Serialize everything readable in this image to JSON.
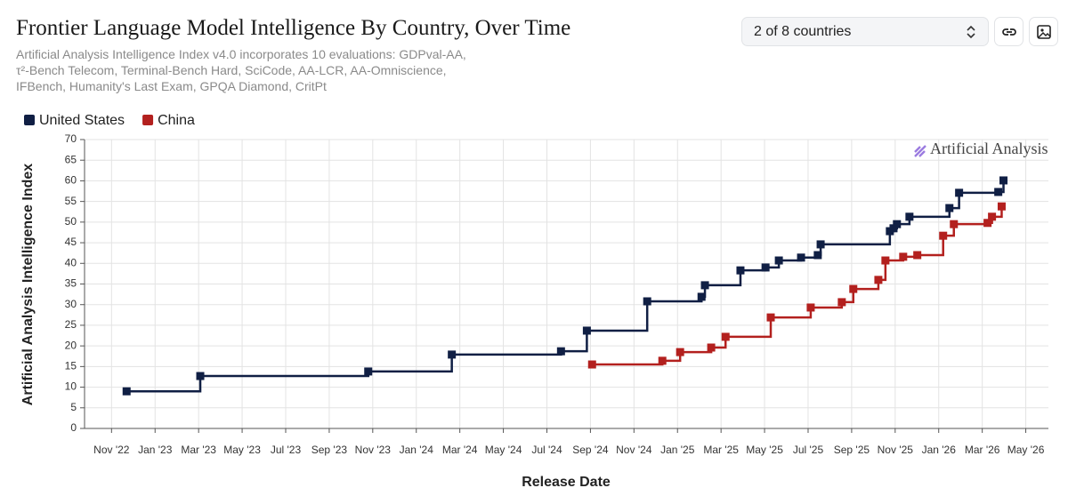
{
  "header": {
    "title": "Frontier Language Model Intelligence By Country, Over Time",
    "subtitle": "Artificial Analysis Intelligence Index v4.0 incorporates 10 evaluations: GDPval-AA, τ²-Bench Telecom, Terminal-Bench Hard, SciCode, AA-LCR, AA-Omniscience, IFBench, Humanity's Last Exam, GPQA Diamond, CritPt"
  },
  "controls": {
    "country_select": "2 of 8 countries"
  },
  "chart_data": {
    "type": "step",
    "watermark": "Artificial Analysis",
    "x_label": "Release Date",
    "y_label": "Artificial Analysis Intelligence Index",
    "xlim": [
      2022.73,
      2026.42
    ],
    "xticks": [
      {
        "value": 2022.8333,
        "label": "Nov '22"
      },
      {
        "value": 2023.0,
        "label": "Jan '23"
      },
      {
        "value": 2023.1667,
        "label": "Mar '23"
      },
      {
        "value": 2023.3333,
        "label": "May '23"
      },
      {
        "value": 2023.5,
        "label": "Jul '23"
      },
      {
        "value": 2023.6667,
        "label": "Sep '23"
      },
      {
        "value": 2023.8333,
        "label": "Nov '23"
      },
      {
        "value": 2024.0,
        "label": "Jan '24"
      },
      {
        "value": 2024.1667,
        "label": "Mar '24"
      },
      {
        "value": 2024.3333,
        "label": "May '24"
      },
      {
        "value": 2024.5,
        "label": "Jul '24"
      },
      {
        "value": 2024.6667,
        "label": "Sep '24"
      },
      {
        "value": 2024.8333,
        "label": "Nov '24"
      },
      {
        "value": 2025.0,
        "label": "Jan '25"
      },
      {
        "value": 2025.1667,
        "label": "Mar '25"
      },
      {
        "value": 2025.3333,
        "label": "May '25"
      },
      {
        "value": 2025.5,
        "label": "Jul '25"
      },
      {
        "value": 2025.6667,
        "label": "Sep '25"
      },
      {
        "value": 2025.8333,
        "label": "Nov '25"
      },
      {
        "value": 2026.0,
        "label": "Jan '26"
      },
      {
        "value": 2026.1667,
        "label": "Mar '26"
      },
      {
        "value": 2026.3333,
        "label": "May '26"
      }
    ],
    "ylim": [
      0,
      70
    ],
    "yticks": [
      0,
      5,
      10,
      15,
      20,
      25,
      30,
      35,
      40,
      45,
      50,
      55,
      60,
      65,
      70
    ],
    "grid": true,
    "series": [
      {
        "name": "United States",
        "color": "#101f44",
        "x": [
          2022.891,
          2023.173,
          2023.816,
          2024.136,
          2024.554,
          2024.653,
          2024.884,
          2025.092,
          2025.105,
          2025.241,
          2025.337,
          2025.388,
          2025.473,
          2025.537,
          2025.548,
          2025.813,
          2025.827,
          2025.84,
          2025.888,
          2026.041,
          2026.078,
          2026.228,
          2026.248
        ],
        "values": [
          9.0,
          12.7,
          13.8,
          17.9,
          18.7,
          23.7,
          30.8,
          31.9,
          34.7,
          38.3,
          39.0,
          40.7,
          41.4,
          42.0,
          44.6,
          47.8,
          48.5,
          49.5,
          51.3,
          53.4,
          57.1,
          57.3,
          60.1
        ]
      },
      {
        "name": "China",
        "color": "#b3201e",
        "x": [
          2024.673,
          2024.942,
          2025.01,
          2025.129,
          2025.184,
          2025.357,
          2025.51,
          2025.629,
          2025.673,
          2025.769,
          2025.796,
          2025.864,
          2025.918,
          2026.017,
          2026.058,
          2026.187,
          2026.204,
          2026.241
        ],
        "values": [
          15.5,
          16.4,
          18.5,
          19.6,
          22.2,
          26.9,
          29.3,
          30.6,
          33.8,
          36.0,
          40.7,
          41.6,
          42.0,
          46.7,
          49.5,
          49.8,
          51.3,
          53.8
        ]
      }
    ]
  }
}
